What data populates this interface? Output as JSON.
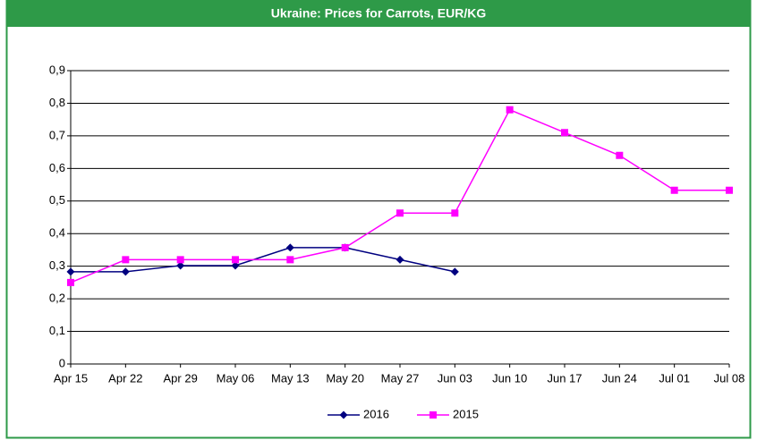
{
  "chart_data": {
    "type": "line",
    "title": "Ukraine: Prices for Carrots, EUR/KG",
    "categories": [
      "Apr 15",
      "Apr 22",
      "Apr 29",
      "May 06",
      "May 13",
      "May 20",
      "May 27",
      "Jun 03",
      "Jun 10",
      "Jun 17",
      "Jun 24",
      "Jul 01",
      "Jul 08"
    ],
    "series": [
      {
        "name": "2016",
        "color": "#000080",
        "marker": "diamond",
        "values": [
          0.283,
          0.283,
          0.302,
          0.302,
          0.357,
          0.357,
          0.32,
          0.283,
          null,
          null,
          null,
          null,
          null
        ]
      },
      {
        "name": "2015",
        "color": "#ff00ff",
        "marker": "square",
        "values": [
          0.25,
          0.32,
          0.32,
          0.32,
          0.32,
          0.357,
          0.463,
          0.463,
          0.78,
          0.71,
          0.64,
          0.533,
          0.533
        ]
      }
    ],
    "ylim": [
      0,
      0.9
    ],
    "yticks": [
      0,
      {
        "value": 0.1,
        "label": "0,1"
      },
      {
        "value": 0.2,
        "label": "0,2"
      },
      {
        "value": 0.3,
        "label": "0,3"
      },
      {
        "value": 0.4,
        "label": "0,4"
      },
      {
        "value": 0.5,
        "label": "0,5"
      },
      {
        "value": 0.6,
        "label": "0,6"
      },
      {
        "value": 0.7,
        "label": "0,7"
      },
      {
        "value": 0.8,
        "label": "0,8"
      },
      {
        "value": 0.9,
        "label": "0,9"
      }
    ],
    "grid": true,
    "legend": "bottom"
  }
}
